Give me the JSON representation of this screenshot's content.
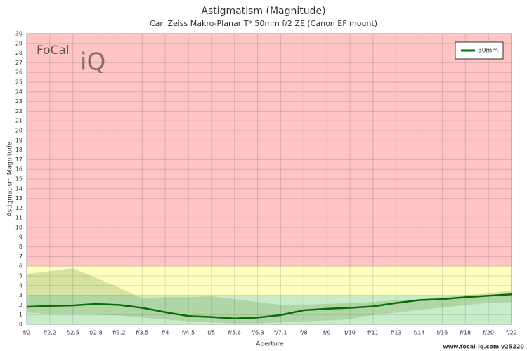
{
  "chart_data": {
    "type": "line",
    "title": "Astigmatism (Magnitude)",
    "subtitle": "Carl Zeiss Makro-Planar T* 50mm f/2 ZE (Canon EF mount)",
    "x_label": "Aperture",
    "y_label": "Astigmatism Magnitude",
    "logo": [
      "FoCal",
      "iQ"
    ],
    "footer": "www.focal-iq.com  v25220",
    "categories": [
      "f/2",
      "f/2.2",
      "f/2.5",
      "f/2.8",
      "f/3.2",
      "f/3.5",
      "f/4",
      "f/4.5",
      "f/5",
      "f/5.6",
      "f/6.3",
      "f/7.1",
      "f/8",
      "f/9",
      "f/10",
      "f/11",
      "f/13",
      "f/14",
      "f/16",
      "f/18",
      "f/20",
      "f/22"
    ],
    "series": [
      {
        "name": "50mm",
        "color": "#0a6b0a",
        "values": [
          1.8,
          1.9,
          1.95,
          2.1,
          2.0,
          1.7,
          1.25,
          0.85,
          0.75,
          0.6,
          0.7,
          0.95,
          1.45,
          1.6,
          1.7,
          1.85,
          2.2,
          2.5,
          2.6,
          2.8,
          2.95,
          3.1
        ]
      }
    ],
    "range": {
      "color": "#7aa35a",
      "upper": [
        5.2,
        5.5,
        5.8,
        4.8,
        3.8,
        2.7,
        2.8,
        2.8,
        2.9,
        2.6,
        2.3,
        2.0,
        2.0,
        2.1,
        2.2,
        2.3,
        2.5,
        2.6,
        2.8,
        3.0,
        3.2,
        3.5
      ],
      "lower": [
        1.2,
        1.1,
        1.1,
        1.0,
        0.9,
        0.7,
        0.5,
        0.3,
        0.2,
        0.1,
        0.1,
        0.2,
        0.3,
        0.4,
        0.5,
        1.0,
        1.2,
        1.5,
        1.7,
        2.0,
        2.2,
        2.3
      ]
    },
    "zones": [
      {
        "from": 0,
        "to": 3,
        "color": "#c8ecc8"
      },
      {
        "from": 3,
        "to": 6,
        "color": "#ffffbf"
      },
      {
        "from": 6,
        "to": 30,
        "color": "#ffc4c4"
      }
    ],
    "ylim": [
      0,
      30
    ],
    "yticks": [
      0,
      1,
      2,
      3,
      4,
      5,
      6,
      7,
      8,
      9,
      10,
      11,
      12,
      13,
      14,
      15,
      16,
      17,
      18,
      19,
      20,
      21,
      22,
      23,
      24,
      25,
      26,
      27,
      28,
      29,
      30
    ],
    "grid": true,
    "legend": "top-right"
  }
}
